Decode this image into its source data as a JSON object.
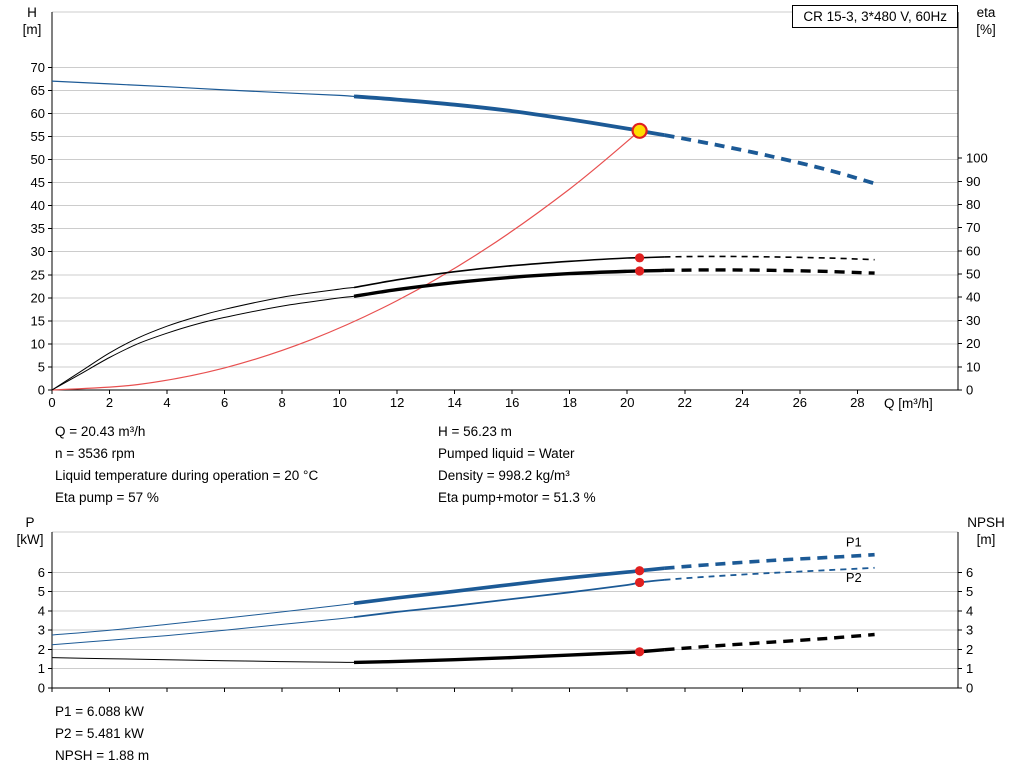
{
  "annotations": {
    "left": [
      "Q = 20.43 m³/h",
      "n = 3536 rpm",
      "Liquid temperature during operation = 20 °C",
      "Eta pump = 57 %"
    ],
    "right": [
      "H = 56.23 m",
      "Pumped liquid = Water",
      "Density = 998.2 kg/m³",
      "Eta pump+motor = 51.3 %"
    ],
    "power": [
      "P1 = 6.088 kW",
      "P2 = 5.481 kW",
      "NPSH = 1.88 m"
    ]
  },
  "colors": {
    "blue": "#1c5a96",
    "black": "#000000",
    "red": "#e02020",
    "system_red": "#e85050",
    "grid": "#cccccc",
    "axis": "#000000",
    "duty_fill": "#ffdd00"
  },
  "chart_data": [
    {
      "type": "line",
      "name": "head-efficiency-chart",
      "title": "CR 15-3, 3*480 V, 60Hz",
      "xlabel": "Q [m³/h]",
      "ylabel_left": [
        "H",
        "[m]"
      ],
      "ylabel_right": [
        "eta",
        "[%]"
      ],
      "xlim": [
        0,
        31.5
      ],
      "xticks": [
        0,
        2,
        4,
        6,
        8,
        10,
        12,
        14,
        16,
        18,
        20,
        22,
        24,
        26,
        28
      ],
      "xtick_labels": true,
      "ylim_left": [
        0,
        82
      ],
      "yticks_left": [
        0,
        5,
        10,
        15,
        20,
        25,
        30,
        35,
        40,
        45,
        50,
        55,
        60,
        65,
        70
      ],
      "ylim_right": [
        0,
        163
      ],
      "yticks_right": [
        0,
        10,
        20,
        30,
        40,
        50,
        60,
        70,
        80,
        90,
        100
      ],
      "grid": "horizontal",
      "legend": "none",
      "series": [
        {
          "name": "head-curve",
          "axis": "left",
          "color": "blue",
          "segments": [
            {
              "style": "solid",
              "w": 1.2,
              "points": [
                [
                  0,
                  67
                ],
                [
                  2,
                  66.4
                ],
                [
                  4,
                  65.8
                ],
                [
                  6,
                  65.1
                ],
                [
                  8,
                  64.5
                ],
                [
                  10,
                  63.9
                ],
                [
                  10.5,
                  63.7
                ]
              ]
            },
            {
              "style": "solid",
              "w": 3.8,
              "points": [
                [
                  10.5,
                  63.7
                ],
                [
                  12,
                  63.0
                ],
                [
                  14,
                  61.9
                ],
                [
                  16,
                  60.5
                ],
                [
                  18,
                  58.7
                ],
                [
                  20,
                  56.7
                ],
                [
                  20.43,
                  56.23
                ],
                [
                  21.3,
                  55.3
                ]
              ]
            },
            {
              "style": "dashed",
              "w": 3.8,
              "points": [
                [
                  21.3,
                  55.3
                ],
                [
                  23,
                  53.3
                ],
                [
                  25,
                  50.7
                ],
                [
                  27,
                  47.7
                ],
                [
                  28.6,
                  44.8
                ]
              ]
            }
          ]
        },
        {
          "name": "system-curve",
          "axis": "left",
          "color": "system_red",
          "segments": [
            {
              "style": "solid",
              "w": 1.2,
              "points": [
                [
                  0,
                  0
                ],
                [
                  3,
                  1.2
                ],
                [
                  6,
                  4.8
                ],
                [
                  9,
                  10.9
                ],
                [
                  12,
                  19.4
                ],
                [
                  15,
                  30.3
                ],
                [
                  18,
                  43.6
                ],
                [
                  20.43,
                  56.23
                ]
              ]
            }
          ]
        },
        {
          "name": "eta-pump-curve",
          "axis": "right",
          "color": "black",
          "segments": [
            {
              "style": "solid",
              "w": 1,
              "points": [
                [
                  0,
                  0
                ],
                [
                  1,
                  8
                ],
                [
                  2,
                  16
                ],
                [
                  3,
                  22.5
                ],
                [
                  4,
                  27.5
                ],
                [
                  5,
                  31.5
                ],
                [
                  6,
                  34.8
                ],
                [
                  8,
                  40
                ],
                [
                  10,
                  43.5
                ],
                [
                  10.5,
                  44.2
                ]
              ]
            },
            {
              "style": "solid",
              "w": 1.6,
              "points": [
                [
                  10.5,
                  44.2
                ],
                [
                  12,
                  47.5
                ],
                [
                  14,
                  51
                ],
                [
                  16,
                  53.6
                ],
                [
                  18,
                  55.5
                ],
                [
                  20,
                  56.9
                ],
                [
                  20.43,
                  57
                ],
                [
                  21.3,
                  57.4
                ]
              ]
            },
            {
              "style": "dashed",
              "w": 1.6,
              "points": [
                [
                  21.3,
                  57.4
                ],
                [
                  23,
                  57.6
                ],
                [
                  25,
                  57.4
                ],
                [
                  27,
                  56.9
                ],
                [
                  28.6,
                  56.2
                ]
              ]
            }
          ]
        },
        {
          "name": "eta-pump-motor-curve",
          "axis": "right",
          "color": "black",
          "segments": [
            {
              "style": "solid",
              "w": 1,
              "points": [
                [
                  0,
                  0
                ],
                [
                  1,
                  7
                ],
                [
                  2,
                  14
                ],
                [
                  3,
                  20
                ],
                [
                  4,
                  24.5
                ],
                [
                  5,
                  28.3
                ],
                [
                  6,
                  31.3
                ],
                [
                  8,
                  36.2
                ],
                [
                  10,
                  39.7
                ],
                [
                  10.5,
                  40.4
                ]
              ]
            },
            {
              "style": "solid",
              "w": 3.4,
              "points": [
                [
                  10.5,
                  40.4
                ],
                [
                  12,
                  43.3
                ],
                [
                  14,
                  46.3
                ],
                [
                  16,
                  48.6
                ],
                [
                  18,
                  50.2
                ],
                [
                  20,
                  51.2
                ],
                [
                  20.43,
                  51.3
                ],
                [
                  21.3,
                  51.6
                ]
              ]
            },
            {
              "style": "dashed",
              "w": 3.4,
              "points": [
                [
                  21.3,
                  51.6
                ],
                [
                  23,
                  51.8
                ],
                [
                  25,
                  51.6
                ],
                [
                  27,
                  51.1
                ],
                [
                  28.6,
                  50.4
                ]
              ]
            }
          ]
        }
      ],
      "markers": [
        {
          "name": "duty-point",
          "axis": "left",
          "x": 20.43,
          "y": 56.23,
          "style": "duty"
        },
        {
          "name": "eta-pump-dot",
          "axis": "right",
          "x": 20.43,
          "y": 57,
          "style": "dot"
        },
        {
          "name": "eta-pump-motor-dot",
          "axis": "right",
          "x": 20.43,
          "y": 51.3,
          "style": "dot"
        }
      ],
      "curve_labels": []
    },
    {
      "type": "line",
      "name": "power-npsh-chart",
      "title": "",
      "xlabel": "",
      "ylabel_left": [
        "P",
        "[kW]"
      ],
      "ylabel_right": [
        "NPSH",
        "[m]"
      ],
      "xlim": [
        0,
        31.5
      ],
      "xticks": [
        0,
        2,
        4,
        6,
        8,
        10,
        12,
        14,
        16,
        18,
        20,
        22,
        24,
        26,
        28
      ],
      "xtick_labels": false,
      "ylim_left": [
        0,
        8.1
      ],
      "yticks_left": [
        0,
        1,
        2,
        3,
        4,
        5,
        6
      ],
      "ylim_right": [
        0,
        8.1
      ],
      "yticks_right": [
        0,
        1,
        2,
        3,
        4,
        5,
        6
      ],
      "grid": "horizontal",
      "legend": "none",
      "series": [
        {
          "name": "p1-curve",
          "axis": "left",
          "color": "blue",
          "segments": [
            {
              "style": "solid",
              "w": 1,
              "points": [
                [
                  0,
                  2.75
                ],
                [
                  2,
                  3.0
                ],
                [
                  4,
                  3.3
                ],
                [
                  6,
                  3.62
                ],
                [
                  8,
                  3.95
                ],
                [
                  10,
                  4.3
                ],
                [
                  10.5,
                  4.4
                ]
              ]
            },
            {
              "style": "solid",
              "w": 3.6,
              "points": [
                [
                  10.5,
                  4.4
                ],
                [
                  12,
                  4.68
                ],
                [
                  14,
                  5.02
                ],
                [
                  16,
                  5.38
                ],
                [
                  18,
                  5.72
                ],
                [
                  20,
                  6.02
                ],
                [
                  20.43,
                  6.088
                ],
                [
                  21.3,
                  6.22
                ]
              ]
            },
            {
              "style": "dashed",
              "w": 3.6,
              "points": [
                [
                  21.3,
                  6.22
                ],
                [
                  23,
                  6.42
                ],
                [
                  25,
                  6.62
                ],
                [
                  27,
                  6.78
                ],
                [
                  28.6,
                  6.92
                ]
              ]
            }
          ]
        },
        {
          "name": "p2-curve",
          "axis": "left",
          "color": "blue",
          "segments": [
            {
              "style": "solid",
              "w": 1,
              "points": [
                [
                  0,
                  2.25
                ],
                [
                  2,
                  2.48
                ],
                [
                  4,
                  2.72
                ],
                [
                  6,
                  3.0
                ],
                [
                  8,
                  3.3
                ],
                [
                  10,
                  3.6
                ],
                [
                  10.5,
                  3.68
                ]
              ]
            },
            {
              "style": "solid",
              "w": 1.8,
              "points": [
                [
                  10.5,
                  3.68
                ],
                [
                  12,
                  3.95
                ],
                [
                  14,
                  4.27
                ],
                [
                  16,
                  4.62
                ],
                [
                  18,
                  4.97
                ],
                [
                  20,
                  5.35
                ],
                [
                  20.43,
                  5.481
                ],
                [
                  21.3,
                  5.62
                ]
              ]
            },
            {
              "style": "dashed",
              "w": 1.8,
              "points": [
                [
                  21.3,
                  5.62
                ],
                [
                  23,
                  5.8
                ],
                [
                  25,
                  5.97
                ],
                [
                  27,
                  6.12
                ],
                [
                  28.6,
                  6.24
                ]
              ]
            }
          ]
        },
        {
          "name": "npsh-curve",
          "axis": "right",
          "color": "black",
          "segments": [
            {
              "style": "solid",
              "w": 1,
              "points": [
                [
                  0,
                  1.58
                ],
                [
                  2,
                  1.52
                ],
                [
                  4,
                  1.47
                ],
                [
                  6,
                  1.42
                ],
                [
                  8,
                  1.37
                ],
                [
                  10,
                  1.34
                ],
                [
                  10.5,
                  1.33
                ]
              ]
            },
            {
              "style": "solid",
              "w": 3.4,
              "points": [
                [
                  10.5,
                  1.33
                ],
                [
                  12,
                  1.38
                ],
                [
                  14,
                  1.47
                ],
                [
                  16,
                  1.58
                ],
                [
                  18,
                  1.71
                ],
                [
                  20,
                  1.85
                ],
                [
                  20.43,
                  1.88
                ],
                [
                  21.3,
                  1.99
                ]
              ]
            },
            {
              "style": "dashed",
              "w": 3.4,
              "points": [
                [
                  21.3,
                  1.99
                ],
                [
                  23,
                  2.18
                ],
                [
                  25,
                  2.38
                ],
                [
                  27,
                  2.58
                ],
                [
                  28.6,
                  2.78
                ]
              ]
            }
          ]
        }
      ],
      "markers": [
        {
          "name": "p1-dot",
          "axis": "left",
          "x": 20.43,
          "y": 6.088,
          "style": "dot"
        },
        {
          "name": "p2-dot",
          "axis": "left",
          "x": 20.43,
          "y": 5.481,
          "style": "dot"
        },
        {
          "name": "npsh-dot",
          "axis": "right",
          "x": 20.43,
          "y": 1.88,
          "style": "dot"
        }
      ],
      "curve_labels": [
        {
          "text": "P1",
          "axis": "left",
          "x": 27.6,
          "y": 7.35
        },
        {
          "text": "P2",
          "axis": "left",
          "x": 27.6,
          "y": 5.5
        }
      ]
    }
  ]
}
